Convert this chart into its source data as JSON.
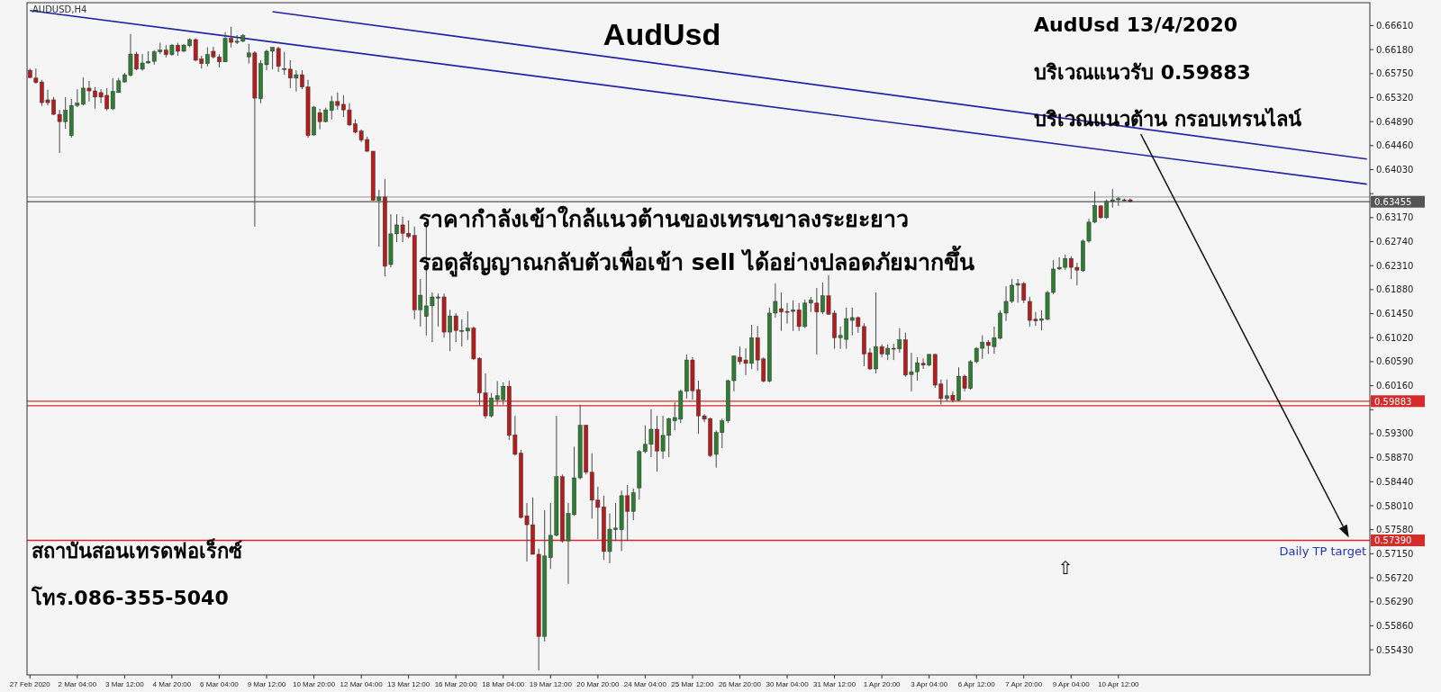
{
  "chart_data": {
    "type": "candlestick",
    "title": "AudUsd",
    "subtitle": "AUDUSD,H4",
    "annotations": [
      "AudUsd 13/4/2020",
      "บริเวณแนวรับ 0.59883",
      "บริเวณแนวต้าน กรอบเทรนไลน์",
      "ราคากำลังเข้าใกล้แนวต้านของเทรนขาลงระยะยาว",
      "รอดูสัญญาณกลับตัวเพื่อเข้า sell ได้อย่างปลอดภัยมากขึ้น",
      "สถาบันสอนเทรดฟอเร็กซ์",
      "โทร.086-355-5040",
      {
        "text": "Daily TP target",
        "y": 0.5739
      },
      "⇧"
    ],
    "categories": [
      "27 Feb 2020",
      null,
      null,
      null,
      null,
      null,
      null,
      null,
      "2 Mar 04:00",
      null,
      null,
      null,
      null,
      null,
      null,
      null,
      "3 Mar 12:00",
      null,
      null,
      null,
      null,
      null,
      null,
      null,
      "4 Mar 20:00",
      null,
      null,
      null,
      null,
      null,
      null,
      null,
      "6 Mar 04:00",
      null,
      null,
      null,
      null,
      null,
      null,
      null,
      "9 Mar 12:00",
      null,
      null,
      null,
      null,
      null,
      null,
      null,
      "10 Mar 20:00",
      null,
      null,
      null,
      null,
      null,
      null,
      null,
      "12 Mar 04:00",
      null,
      null,
      null,
      null,
      null,
      null,
      null,
      "13 Mar 12:00",
      null,
      null,
      null,
      null,
      null,
      null,
      null,
      "16 Mar 20:00",
      null,
      null,
      null,
      null,
      null,
      null,
      null,
      "18 Mar 04:00",
      null,
      null,
      null,
      null,
      null,
      null,
      null,
      "19 Mar 12:00",
      null,
      null,
      null,
      null,
      null,
      null,
      null,
      "20 Mar 20:00",
      null,
      null,
      null,
      null,
      null,
      null,
      null,
      "24 Mar 04:00",
      null,
      null,
      null,
      null,
      null,
      null,
      null,
      "25 Mar 12:00",
      null,
      null,
      null,
      null,
      null,
      null,
      null,
      "26 Mar 20:00",
      null,
      null,
      null,
      null,
      null,
      null,
      null,
      "30 Mar 04:00",
      null,
      null,
      null,
      null,
      null,
      null,
      null,
      "31 Mar 12:00",
      null,
      null,
      null,
      null,
      null,
      null,
      null,
      "1 Apr 20:00",
      null,
      null,
      null,
      null,
      null,
      null,
      null,
      "3 Apr 04:00",
      null,
      null,
      null,
      null,
      null,
      null,
      null,
      "6 Apr 12:00",
      null,
      null,
      null,
      null,
      null,
      null,
      null,
      "7 Apr 20:00",
      null,
      null,
      null,
      null,
      null,
      null,
      null,
      "9 Apr 04:00",
      null,
      null,
      null,
      null,
      null,
      null,
      null,
      "10 Apr 12:00",
      null,
      null,
      null,
      null,
      null,
      null,
      null,
      null,
      null,
      null,
      null,
      null,
      null,
      null,
      null,
      null,
      null,
      null,
      null,
      null,
      null,
      null,
      null,
      null,
      null,
      null,
      null,
      null,
      null,
      null,
      null,
      null,
      null,
      null,
      null,
      null,
      null,
      null,
      null,
      null,
      null,
      null
    ],
    "ohlc": [
      [
        0.6581,
        0.6584,
        0.6567,
        0.6568
      ],
      [
        0.6567,
        0.6584,
        0.6557,
        0.6559
      ],
      [
        0.656,
        0.6564,
        0.6517,
        0.6523
      ],
      [
        0.6528,
        0.6546,
        0.6518,
        0.6523
      ],
      [
        0.6528,
        0.6533,
        0.6501,
        0.6502
      ],
      [
        0.6502,
        0.651,
        0.6433,
        0.6489
      ],
      [
        0.6489,
        0.6533,
        0.6476,
        0.6509
      ],
      [
        0.6464,
        0.653,
        0.646,
        0.6518
      ],
      [
        0.6518,
        0.6547,
        0.6515,
        0.6522
      ],
      [
        0.652,
        0.6568,
        0.6518,
        0.6549
      ],
      [
        0.6549,
        0.6562,
        0.6525,
        0.6544
      ],
      [
        0.6544,
        0.6551,
        0.6512,
        0.6533
      ],
      [
        0.6541,
        0.6547,
        0.6522,
        0.6533
      ],
      [
        0.6536,
        0.6549,
        0.6509,
        0.6512
      ],
      [
        0.6512,
        0.6567,
        0.651,
        0.6543
      ],
      [
        0.6541,
        0.6567,
        0.6541,
        0.6562
      ],
      [
        0.656,
        0.6576,
        0.6559,
        0.6573
      ],
      [
        0.6572,
        0.6646,
        0.657,
        0.661
      ],
      [
        0.661,
        0.6614,
        0.6581,
        0.6583
      ],
      [
        0.6583,
        0.661,
        0.658,
        0.6594
      ],
      [
        0.6594,
        0.6615,
        0.6593,
        0.6597
      ],
      [
        0.6597,
        0.6617,
        0.6591,
        0.6614
      ],
      [
        0.6614,
        0.663,
        0.661,
        0.6617
      ],
      [
        0.6617,
        0.6626,
        0.6604,
        0.6609
      ],
      [
        0.6609,
        0.6628,
        0.6607,
        0.6626
      ],
      [
        0.6626,
        0.663,
        0.6607,
        0.6615
      ],
      [
        0.6615,
        0.6628,
        0.6614,
        0.6626
      ],
      [
        0.6625,
        0.6638,
        0.6622,
        0.6636
      ],
      [
        0.6636,
        0.6638,
        0.6597,
        0.6599
      ],
      [
        0.6601,
        0.6607,
        0.6584,
        0.6593
      ],
      [
        0.6593,
        0.6622,
        0.6588,
        0.6609
      ],
      [
        0.6615,
        0.6623,
        0.6602,
        0.6605
      ],
      [
        0.6605,
        0.661,
        0.6586,
        0.6596
      ],
      [
        0.6596,
        0.6649,
        0.6596,
        0.6638
      ],
      [
        0.6638,
        0.6659,
        0.6622,
        0.6631
      ],
      [
        0.6631,
        0.6644,
        0.6628,
        0.6633
      ],
      [
        0.6633,
        0.6646,
        0.6631,
        0.6643
      ],
      [
        0.6605,
        0.6628,
        0.6593,
        0.6612
      ],
      [
        0.6612,
        0.6615,
        0.6301,
        0.6531
      ],
      [
        0.653,
        0.6599,
        0.6522,
        0.6593
      ],
      [
        0.6591,
        0.6618,
        0.6581,
        0.6615
      ],
      [
        0.6615,
        0.6622,
        0.6583,
        0.6622
      ],
      [
        0.662,
        0.6623,
        0.6578,
        0.6588
      ],
      [
        0.6584,
        0.6614,
        0.6573,
        0.6583
      ],
      [
        0.6583,
        0.6599,
        0.6549,
        0.6567
      ],
      [
        0.6567,
        0.6581,
        0.6543,
        0.6573
      ],
      [
        0.6573,
        0.6581,
        0.6547,
        0.6551
      ],
      [
        0.6551,
        0.6564,
        0.646,
        0.6464
      ],
      [
        0.6465,
        0.6517,
        0.6464,
        0.6515
      ],
      [
        0.6505,
        0.6512,
        0.6475,
        0.6489
      ],
      [
        0.6489,
        0.6514,
        0.6488,
        0.651
      ],
      [
        0.6509,
        0.6535,
        0.6493,
        0.6525
      ],
      [
        0.6525,
        0.6541,
        0.651,
        0.6518
      ],
      [
        0.652,
        0.6536,
        0.6497,
        0.651
      ],
      [
        0.651,
        0.6522,
        0.6481,
        0.6483
      ],
      [
        0.6485,
        0.6493,
        0.6468,
        0.647
      ],
      [
        0.6472,
        0.6475,
        0.6452,
        0.6456
      ],
      [
        0.6457,
        0.6462,
        0.6435,
        0.6436
      ],
      [
        0.6436,
        0.6436,
        0.6348,
        0.6348
      ],
      [
        0.6348,
        0.6367,
        0.6265,
        0.6354
      ],
      [
        0.6354,
        0.6386,
        0.6212,
        0.623
      ],
      [
        0.6233,
        0.6323,
        0.6228,
        0.6288
      ],
      [
        0.6288,
        0.6323,
        0.6273,
        0.6304
      ],
      [
        0.6304,
        0.6319,
        0.6273,
        0.6289
      ],
      [
        0.6289,
        0.6312,
        0.628,
        0.6283
      ],
      [
        0.6285,
        0.6301,
        0.6135,
        0.6152
      ],
      [
        0.6152,
        0.6207,
        0.6122,
        0.6178
      ],
      [
        0.614,
        0.6302,
        0.6106,
        0.6159
      ],
      [
        0.6159,
        0.6183,
        0.6094,
        0.6175
      ],
      [
        0.6173,
        0.6181,
        0.6122,
        0.6175
      ],
      [
        0.6175,
        0.6181,
        0.6102,
        0.6112
      ],
      [
        0.6112,
        0.6152,
        0.6078,
        0.6141
      ],
      [
        0.6141,
        0.6146,
        0.6094,
        0.6115
      ],
      [
        0.6114,
        0.6135,
        0.6086,
        0.6115
      ],
      [
        0.6114,
        0.6149,
        0.6098,
        0.6119
      ],
      [
        0.6119,
        0.6122,
        0.6062,
        0.6064
      ],
      [
        0.6065,
        0.6067,
        0.598,
        0.6003
      ],
      [
        0.6003,
        0.6038,
        0.5957,
        0.5962
      ],
      [
        0.5962,
        0.6003,
        0.5959,
        0.5994
      ],
      [
        0.5991,
        0.6024,
        0.5982,
        0.5998
      ],
      [
        0.5991,
        0.6022,
        0.5982,
        0.6015
      ],
      [
        0.6015,
        0.6025,
        0.5919,
        0.5927
      ],
      [
        0.5928,
        0.5962,
        0.5891,
        0.5893
      ],
      [
        0.5895,
        0.5901,
        0.5778,
        0.578
      ],
      [
        0.5783,
        0.5806,
        0.5701,
        0.5767
      ],
      [
        0.5767,
        0.5816,
        0.5714,
        0.5714
      ],
      [
        0.5714,
        0.5724,
        0.5506,
        0.5567
      ],
      [
        0.5567,
        0.5793,
        0.5558,
        0.5711
      ],
      [
        0.5708,
        0.5806,
        0.5688,
        0.5748
      ],
      [
        0.5748,
        0.5962,
        0.5746,
        0.5853
      ],
      [
        0.5853,
        0.5857,
        0.5735,
        0.5738
      ],
      [
        0.5738,
        0.5806,
        0.5661,
        0.5787
      ],
      [
        0.5785,
        0.5907,
        0.5783,
        0.5851
      ],
      [
        0.5851,
        0.5982,
        0.5848,
        0.5945
      ],
      [
        0.5945,
        0.5946,
        0.5857,
        0.5861
      ],
      [
        0.5861,
        0.5895,
        0.5778,
        0.5811
      ],
      [
        0.5811,
        0.5835,
        0.5741,
        0.5798
      ],
      [
        0.5799,
        0.5819,
        0.5704,
        0.5719
      ],
      [
        0.5719,
        0.5787,
        0.5698,
        0.5759
      ],
      [
        0.5758,
        0.5806,
        0.5738,
        0.5761
      ],
      [
        0.5758,
        0.5828,
        0.572,
        0.5819
      ],
      [
        0.5819,
        0.5838,
        0.5738,
        0.5791
      ],
      [
        0.5791,
        0.5832,
        0.5775,
        0.5824
      ],
      [
        0.5833,
        0.5901,
        0.5812,
        0.5898
      ],
      [
        0.5898,
        0.5945,
        0.5895,
        0.5911
      ],
      [
        0.5911,
        0.5974,
        0.5888,
        0.5938
      ],
      [
        0.5938,
        0.5962,
        0.5862,
        0.5899
      ],
      [
        0.5899,
        0.5962,
        0.5885,
        0.5927
      ],
      [
        0.5927,
        0.5959,
        0.5888,
        0.5957
      ],
      [
        0.5953,
        0.5986,
        0.5936,
        0.5959
      ],
      [
        0.5956,
        0.6009,
        0.5949,
        0.6006
      ],
      [
        0.6006,
        0.6072,
        0.5993,
        0.6062
      ],
      [
        0.6062,
        0.6067,
        0.5991,
        0.6007
      ],
      [
        0.6009,
        0.6025,
        0.593,
        0.5962
      ],
      [
        0.5962,
        0.5965,
        0.5951,
        0.5956
      ],
      [
        0.5957,
        0.5959,
        0.5888,
        0.5891
      ],
      [
        0.5893,
        0.5936,
        0.5869,
        0.5932
      ],
      [
        0.5932,
        0.5957,
        0.5904,
        0.5953
      ],
      [
        0.5953,
        0.6027,
        0.5949,
        0.6025
      ],
      [
        0.6025,
        0.607,
        0.6006,
        0.6069
      ],
      [
        0.6067,
        0.6086,
        0.6054,
        0.6059
      ],
      [
        0.6062,
        0.6083,
        0.6035,
        0.6056
      ],
      [
        0.6056,
        0.6125,
        0.6046,
        0.6102
      ],
      [
        0.6102,
        0.6123,
        0.6043,
        0.6062
      ],
      [
        0.6064,
        0.6067,
        0.6022,
        0.6024
      ],
      [
        0.6024,
        0.6156,
        0.6022,
        0.6146
      ],
      [
        0.6146,
        0.6199,
        0.6138,
        0.6167
      ],
      [
        0.6154,
        0.6183,
        0.6114,
        0.6148
      ],
      [
        0.6149,
        0.6164,
        0.6127,
        0.6148
      ],
      [
        0.6149,
        0.6169,
        0.6114,
        0.6152
      ],
      [
        0.6152,
        0.6164,
        0.6114,
        0.6122
      ],
      [
        0.6122,
        0.617,
        0.6119,
        0.6164
      ],
      [
        0.6164,
        0.6175,
        0.6148,
        0.6169
      ],
      [
        0.6164,
        0.6191,
        0.6072,
        0.6148
      ],
      [
        0.6148,
        0.6201,
        0.6144,
        0.6177
      ],
      [
        0.6177,
        0.6214,
        0.6143,
        0.6144
      ],
      [
        0.6146,
        0.6151,
        0.6082,
        0.6102
      ],
      [
        0.6102,
        0.6122,
        0.6082,
        0.6106
      ],
      [
        0.6099,
        0.6156,
        0.6082,
        0.6136
      ],
      [
        0.6133,
        0.6156,
        0.6106,
        0.6138
      ],
      [
        0.6138,
        0.614,
        0.6111,
        0.6122
      ],
      [
        0.6122,
        0.6128,
        0.6051,
        0.6073
      ],
      [
        0.6075,
        0.6083,
        0.6044,
        0.6046
      ],
      [
        0.6046,
        0.6183,
        0.6038,
        0.6086
      ],
      [
        0.6086,
        0.609,
        0.6067,
        0.6073
      ],
      [
        0.6072,
        0.609,
        0.6062,
        0.6083
      ],
      [
        0.6083,
        0.6091,
        0.6062,
        0.6082
      ],
      [
        0.6082,
        0.6119,
        0.6075,
        0.6098
      ],
      [
        0.6098,
        0.6111,
        0.6032,
        0.6035
      ],
      [
        0.6036,
        0.6075,
        0.6006,
        0.6041
      ],
      [
        0.6041,
        0.6067,
        0.6025,
        0.6057
      ],
      [
        0.6056,
        0.6065,
        0.6046,
        0.6053
      ],
      [
        0.6053,
        0.6073,
        0.6051,
        0.6072
      ],
      [
        0.6072,
        0.6073,
        0.6012,
        0.6017
      ],
      [
        0.6019,
        0.6027,
        0.5982,
        0.5993
      ],
      [
        0.5993,
        0.6027,
        0.5988,
        0.5998
      ],
      [
        0.5999,
        0.6006,
        0.5986,
        0.599
      ],
      [
        0.599,
        0.6049,
        0.5988,
        0.6033
      ],
      [
        0.6033,
        0.6036,
        0.6006,
        0.6011
      ],
      [
        0.6011,
        0.6062,
        0.6009,
        0.6059
      ],
      [
        0.6059,
        0.6085,
        0.6056,
        0.6083
      ],
      [
        0.6083,
        0.6106,
        0.6064,
        0.6094
      ],
      [
        0.6094,
        0.6098,
        0.6073,
        0.6088
      ],
      [
        0.6086,
        0.6122,
        0.6073,
        0.6102
      ],
      [
        0.6101,
        0.6151,
        0.6099,
        0.6146
      ],
      [
        0.6146,
        0.6194,
        0.6132,
        0.6167
      ],
      [
        0.6167,
        0.6207,
        0.6164,
        0.6196
      ],
      [
        0.6196,
        0.6207,
        0.6165,
        0.6199
      ],
      [
        0.6199,
        0.6202,
        0.6164,
        0.6169
      ],
      [
        0.6167,
        0.6175,
        0.6122,
        0.6133
      ],
      [
        0.6135,
        0.6148,
        0.6123,
        0.6132
      ],
      [
        0.6133,
        0.6151,
        0.6115,
        0.6136
      ],
      [
        0.6135,
        0.6186,
        0.6133,
        0.6183
      ],
      [
        0.6183,
        0.6241,
        0.618,
        0.6225
      ],
      [
        0.6225,
        0.6246,
        0.6223,
        0.6228
      ],
      [
        0.6228,
        0.6251,
        0.6223,
        0.6244
      ],
      [
        0.6244,
        0.6248,
        0.6207,
        0.6228
      ],
      [
        0.6228,
        0.6236,
        0.6196,
        0.6223
      ],
      [
        0.6222,
        0.6278,
        0.622,
        0.6275
      ],
      [
        0.6275,
        0.6315,
        0.6272,
        0.6309
      ],
      [
        0.6309,
        0.6364,
        0.6307,
        0.6339
      ],
      [
        0.6338,
        0.6339,
        0.6315,
        0.6317
      ],
      [
        0.6317,
        0.6349,
        0.6315,
        0.6346
      ],
      [
        0.6346,
        0.6368,
        0.6335,
        0.6349
      ],
      [
        0.6349,
        0.6354,
        0.6338,
        0.6351
      ],
      [
        0.6349,
        0.6351,
        0.6346,
        0.6348
      ],
      [
        0.6349,
        0.6351,
        0.6344,
        0.6346
      ],
      null,
      null,
      null,
      null,
      null,
      null,
      null,
      null,
      null,
      null,
      null,
      null,
      null,
      null,
      null,
      null,
      null,
      null,
      null,
      null,
      null,
      null,
      null,
      null,
      null,
      null,
      null,
      null,
      null,
      null,
      null,
      null,
      null,
      null,
      null,
      null,
      null,
      null,
      null,
      null
    ],
    "colors": [
      "#b71c1c",
      "#b71c1c",
      "#b71c1c",
      "#b71c1c",
      "#b71c1c",
      "#b71c1c",
      "#2e7d32",
      "#2e7d32",
      "#2e7d32",
      "#2e7d32",
      "#b71c1c",
      "#b71c1c",
      "#b71c1c",
      "#b71c1c",
      "#2e7d32",
      "#2e7d32",
      "#2e7d32",
      "#2e7d32",
      "#b71c1c",
      "#2e7d32",
      "#2e7d32",
      "#2e7d32",
      "#2e7d32",
      "#b71c1c",
      "#2e7d32",
      "#b71c1c",
      "#2e7d32",
      "#2e7d32",
      "#b71c1c",
      "#b71c1c",
      "#2e7d32",
      "#b71c1c",
      "#b71c1c",
      "#2e7d32",
      "#b71c1c",
      "#2e7d32",
      "#2e7d32",
      "#2e7d32",
      "#b71c1c",
      "#2e7d32",
      "#2e7d32",
      "#2e7d32",
      "#b71c1c",
      "#b71c1c",
      "#b71c1c",
      "#2e7d32",
      "#b71c1c",
      "#b71c1c",
      "#2e7d32",
      "#b71c1c",
      "#2e7d32",
      "#2e7d32",
      "#b71c1c",
      "#b71c1c",
      "#b71c1c",
      "#b71c1c",
      "#b71c1c",
      "#b71c1c",
      "#b71c1c",
      "#2e7d32",
      "#b71c1c",
      "#2e7d32",
      "#2e7d32",
      "#b71c1c",
      "#b71c1c",
      "#b71c1c",
      "#2e7d32",
      "#2e7d32",
      "#2e7d32",
      "#2e7d32",
      "#b71c1c",
      "#2e7d32",
      "#b71c1c",
      "#2e7d32",
      "#2e7d32",
      "#b71c1c",
      "#b71c1c",
      "#b71c1c",
      "#2e7d32",
      "#2e7d32",
      "#2e7d32",
      "#b71c1c",
      "#b71c1c",
      "#b71c1c",
      "#b71c1c",
      "#b71c1c",
      "#b71c1c",
      "#2e7d32",
      "#2e7d32",
      "#2e7d32",
      "#b71c1c",
      "#2e7d32",
      "#2e7d32",
      "#2e7d32",
      "#b71c1c",
      "#b71c1c",
      "#b71c1c",
      "#b71c1c",
      "#2e7d32",
      "#2e7d32",
      "#2e7d32",
      "#b71c1c",
      "#2e7d32",
      "#2e7d32",
      "#2e7d32",
      "#2e7d32",
      "#b71c1c",
      "#2e7d32",
      "#2e7d32",
      "#2e7d32",
      "#2e7d32",
      "#2e7d32",
      "#b71c1c",
      "#b71c1c",
      "#b71c1c",
      "#b71c1c",
      "#2e7d32",
      "#2e7d32",
      "#2e7d32",
      "#2e7d32",
      "#b71c1c",
      "#b71c1c",
      "#2e7d32",
      "#b71c1c",
      "#b71c1c",
      "#2e7d32",
      "#2e7d32",
      "#b71c1c",
      "#b71c1c",
      "#2e7d32",
      "#b71c1c",
      "#2e7d32",
      "#2e7d32",
      "#b71c1c",
      "#2e7d32",
      "#b71c1c",
      "#b71c1c",
      "#2e7d32",
      "#2e7d32",
      "#2e7d32",
      "#b71c1c",
      "#b71c1c",
      "#b71c1c",
      "#2e7d32",
      "#b71c1c",
      "#2e7d32",
      "#b71c1c",
      "#2e7d32",
      "#b71c1c",
      "#2e7d32",
      "#2e7d32",
      "#b71c1c",
      "#2e7d32",
      "#b71c1c",
      "#b71c1c",
      "#2e7d32",
      "#b71c1c",
      "#2e7d32",
      "#b71c1c",
      "#2e7d32",
      "#2e7d32",
      "#2e7d32",
      "#b71c1c",
      "#2e7d32",
      "#2e7d32",
      "#2e7d32",
      "#2e7d32",
      "#2e7d32",
      "#b71c1c",
      "#b71c1c",
      "#b71c1c",
      "#2e7d32",
      "#2e7d32",
      "#2e7d32",
      "#2e7d32",
      "#2e7d32",
      "#b71c1c",
      "#b71c1c",
      "#2e7d32",
      "#2e7d32",
      "#2e7d32",
      "#b71c1c",
      "#2e7d32",
      "#2e7d32",
      "#2e7d32",
      "#b71c1c",
      "#b71c1c",
      null,
      null,
      null,
      null,
      null,
      null,
      null,
      null,
      null,
      null,
      null,
      null,
      null,
      null,
      null,
      null,
      null,
      null,
      null,
      null,
      null,
      null,
      null,
      null,
      null,
      null,
      null,
      null,
      null,
      null,
      null,
      null,
      null,
      null,
      null,
      null,
      null,
      null,
      null,
      null
    ],
    "series": [
      {
        "type": "line",
        "color": "#2323a8",
        "values": [
          null,
          null,
          null,
          null,
          null,
          null,
          null,
          null,
          null,
          null,
          null,
          null,
          null,
          null,
          null,
          null,
          null,
          null,
          null,
          null,
          null,
          null,
          null,
          null,
          null,
          null,
          null,
          null,
          null,
          null,
          null,
          null,
          null,
          null,
          null,
          null,
          null,
          null,
          null,
          null,
          null,
          0.6686,
          null,
          null,
          null,
          null,
          null,
          null,
          null,
          null,
          null,
          null,
          null,
          null,
          null,
          null,
          null,
          null,
          null,
          null,
          null,
          null,
          null,
          null,
          null,
          null,
          null,
          null,
          null,
          null,
          null,
          null,
          null,
          null,
          null,
          null,
          null,
          null,
          null,
          null,
          null,
          null,
          null,
          null,
          null,
          null,
          null,
          null,
          null,
          null,
          null,
          null,
          null,
          null,
          null,
          null,
          null,
          null,
          null,
          null,
          null,
          null,
          null,
          null,
          null,
          null,
          null,
          null,
          null,
          null,
          null,
          null,
          null,
          null,
          null,
          null,
          null,
          null,
          null,
          null,
          null,
          null,
          null,
          null,
          null,
          null,
          null,
          null,
          null,
          null,
          null,
          null,
          null,
          null,
          null,
          null,
          null,
          null,
          null,
          null,
          null,
          null,
          null,
          null,
          null,
          null,
          null,
          null,
          null,
          null,
          null,
          null,
          null,
          null,
          null,
          null,
          null,
          null,
          null,
          null,
          null,
          null,
          null,
          null,
          null,
          null,
          null,
          null,
          null,
          null,
          null,
          null,
          null,
          null,
          null,
          null,
          null,
          null,
          null,
          null,
          null,
          null,
          null,
          null,
          null,
          null,
          null,
          null,
          null,
          null,
          null,
          null,
          null,
          null,
          null,
          null,
          null,
          null,
          null,
          null,
          null,
          null,
          null,
          null,
          null,
          null,
          null,
          null,
          null,
          null,
          null,
          null,
          null,
          null,
          null,
          null,
          null,
          null,
          null,
          null,
          null,
          null,
          null,
          null,
          null,
          null,
          0.6422
        ]
      },
      {
        "type": "line",
        "color": "#2323a8",
        "values": [
          0.6688,
          null,
          null,
          null,
          null,
          null,
          null,
          null,
          null,
          null,
          null,
          null,
          null,
          null,
          null,
          null,
          null,
          null,
          null,
          null,
          null,
          null,
          null,
          null,
          null,
          null,
          null,
          null,
          null,
          null,
          null,
          null,
          null,
          null,
          null,
          null,
          null,
          null,
          null,
          null,
          null,
          null,
          null,
          null,
          null,
          null,
          null,
          null,
          null,
          null,
          null,
          null,
          null,
          null,
          null,
          null,
          null,
          null,
          null,
          null,
          null,
          null,
          null,
          null,
          null,
          null,
          null,
          null,
          null,
          null,
          null,
          null,
          null,
          null,
          null,
          null,
          null,
          null,
          null,
          null,
          null,
          null,
          null,
          null,
          null,
          null,
          null,
          null,
          null,
          null,
          null,
          null,
          null,
          null,
          null,
          null,
          null,
          null,
          null,
          null,
          null,
          null,
          null,
          null,
          null,
          null,
          null,
          null,
          null,
          null,
          null,
          null,
          null,
          null,
          null,
          null,
          null,
          null,
          null,
          null,
          null,
          null,
          null,
          null,
          null,
          null,
          null,
          null,
          null,
          null,
          null,
          null,
          null,
          null,
          null,
          null,
          null,
          null,
          null,
          null,
          null,
          null,
          null,
          null,
          null,
          null,
          null,
          null,
          null,
          null,
          null,
          null,
          null,
          null,
          null,
          null,
          null,
          null,
          null,
          null,
          null,
          null,
          null,
          null,
          null,
          null,
          null,
          null,
          null,
          null,
          null,
          null,
          null,
          null,
          null,
          null,
          null,
          null,
          null,
          null,
          null,
          null,
          null,
          null,
          null,
          null,
          null,
          null,
          null,
          null,
          null,
          null,
          null,
          null,
          null,
          null,
          null,
          null,
          null,
          null,
          null,
          null,
          null,
          null,
          null,
          null,
          null,
          null,
          null,
          null,
          null,
          null,
          null,
          null,
          null,
          null,
          null,
          null,
          null,
          null,
          null,
          null,
          null,
          null,
          null,
          null,
          0.6377
        ]
      }
    ],
    "ref_lines": [
      {
        "axis": "y",
        "value": 0.6354,
        "color": "#a8a8a8"
      },
      {
        "axis": "y",
        "value": 0.63455,
        "label": "0.63455",
        "color": "#555555"
      },
      {
        "axis": "y",
        "value": 0.59883,
        "label": "0.59883",
        "color": "#d62b2b"
      },
      {
        "axis": "y",
        "value": 0.598,
        "color": "#d62b2b"
      },
      {
        "axis": "y",
        "value": 0.5739,
        "label": "0.57390",
        "color": "#d62b2b"
      }
    ],
    "ylim": [
      0.5498,
      0.6702
    ],
    "yticks": [
      {
        "value": 0.6661,
        "label": "0.66610"
      },
      {
        "value": 0.6618,
        "label": "0.66180"
      },
      {
        "value": 0.6575,
        "label": "0.65750"
      },
      {
        "value": 0.6532,
        "label": "0.65320"
      },
      {
        "value": 0.6489,
        "label": "0.64890"
      },
      {
        "value": 0.6446,
        "label": "0.64460"
      },
      {
        "value": 0.6403,
        "label": "0.64030"
      },
      {
        "value": 0.636,
        "label": null
      },
      {
        "value": 0.6317,
        "label": "0.63170"
      },
      {
        "value": 0.6274,
        "label": "0.62740"
      },
      {
        "value": 0.6231,
        "label": "0.62310"
      },
      {
        "value": 0.6188,
        "label": "0.61880"
      },
      {
        "value": 0.6145,
        "label": "0.61450"
      },
      {
        "value": 0.6102,
        "label": "0.61020"
      },
      {
        "value": 0.6059,
        "label": "0.60590"
      },
      {
        "value": 0.6016,
        "label": "0.60160"
      },
      {
        "value": 0.5973,
        "label": null
      },
      {
        "value": 0.593,
        "label": "0.59300"
      },
      {
        "value": 0.5887,
        "label": "0.58870"
      },
      {
        "value": 0.5844,
        "label": "0.58440"
      },
      {
        "value": 0.5801,
        "label": "0.58010"
      },
      {
        "value": 0.5758,
        "label": "0.57580"
      },
      {
        "value": 0.5715,
        "label": "0.57150"
      },
      {
        "value": 0.5672,
        "label": "0.56720"
      },
      {
        "value": 0.5629,
        "label": "0.56290"
      },
      {
        "value": 0.5586,
        "label": "0.55860"
      },
      {
        "value": 0.5543,
        "label": "0.55430"
      }
    ]
  }
}
